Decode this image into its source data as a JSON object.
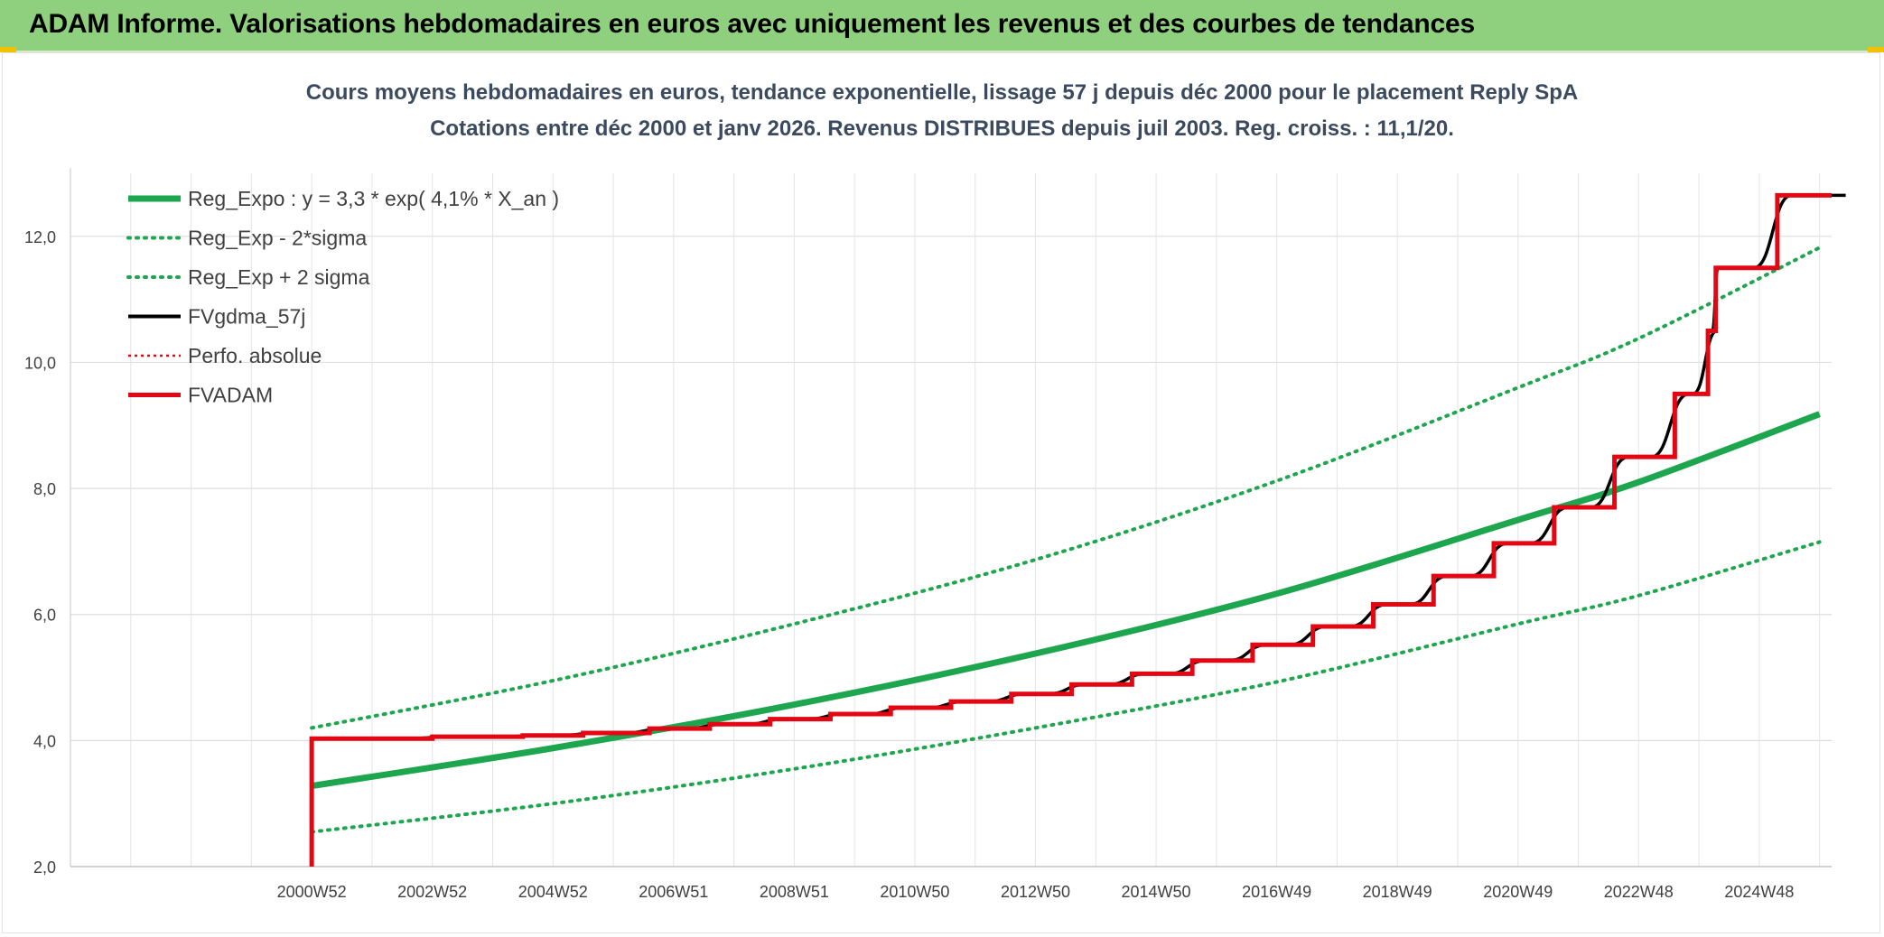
{
  "header": {
    "title": "ADAM Informe. Valorisations hebdomadaires en euros avec uniquement les revenus et des courbes de tendances"
  },
  "colors": {
    "banner": "#8fd07f",
    "reg": "#1ea64f",
    "fvgdma": "#000000",
    "fvadam": "#e30613",
    "perfo": "#e30613"
  },
  "chart_data": {
    "type": "line",
    "title": "Cours moyens hebdomadaires en euros, tendance exponentielle, lissage 57 j depuis déc 2000 pour le placement Reply SpA",
    "subtitle": "Cotations entre déc 2000 et janv 2026. Revenus DISTRIBUES depuis juil 2003. Reg. croiss. : 11,1/20.",
    "x_tick_labels": [
      "2000W52",
      "2002W52",
      "2004W52",
      "2006W51",
      "2008W51",
      "2010W50",
      "2012W50",
      "2014W50",
      "2016W49",
      "2018W49",
      "2020W49",
      "2022W48",
      "2024W48"
    ],
    "x_tick_years": [
      2001,
      2003,
      2005,
      2007,
      2009,
      2011,
      2013,
      2015,
      2017,
      2019,
      2021,
      2023,
      2025
    ],
    "x_range": [
      1997,
      2026.2
    ],
    "y_range": [
      2,
      13
    ],
    "y_ticks": [
      2,
      4,
      6,
      8,
      10,
      12
    ],
    "y_tick_labels": [
      "2,0",
      "4,0",
      "6,0",
      "8,0",
      "10,0",
      "12,0"
    ],
    "grid": true,
    "legend_position": "top-left",
    "legend": [
      {
        "key": "reg",
        "label": "Reg_Expo : y = 3,3 * exp( 4,1% *  X_an )",
        "style": "solid-thick"
      },
      {
        "key": "reg_minus",
        "label": "Reg_Exp - 2*sigma",
        "style": "dotted-green"
      },
      {
        "key": "reg_plus",
        "label": "Reg_Exp + 2 sigma",
        "style": "dotted-green"
      },
      {
        "key": "fvgdma",
        "label": "FVgdma_57j",
        "style": "solid-black"
      },
      {
        "key": "perfo",
        "label": "Perfo. absolue",
        "style": "dotted-red"
      },
      {
        "key": "fvadam",
        "label": "FVADAM",
        "style": "solid-red"
      }
    ],
    "series": [
      {
        "key": "reg",
        "x": [
          2001,
          2005,
          2009,
          2013,
          2017,
          2021,
          2023,
          2026
        ],
        "y": [
          3.28,
          3.88,
          4.57,
          5.38,
          6.33,
          7.5,
          8.1,
          9.18
        ]
      },
      {
        "key": "reg_minus",
        "x": [
          2001,
          2005,
          2009,
          2013,
          2017,
          2021,
          2023,
          2026
        ],
        "y": [
          2.55,
          3.0,
          3.55,
          4.2,
          4.93,
          5.85,
          6.3,
          7.15
        ]
      },
      {
        "key": "reg_plus",
        "x": [
          2001,
          2005,
          2009,
          2013,
          2017,
          2021,
          2023,
          2026
        ],
        "y": [
          4.2,
          4.95,
          5.85,
          6.87,
          8.12,
          9.6,
          10.38,
          11.82
        ]
      },
      {
        "key": "fvadam",
        "steps": [
          [
            2001.0,
            4.03
          ],
          [
            2003.0,
            4.06
          ],
          [
            2004.5,
            4.08
          ],
          [
            2005.5,
            4.12
          ],
          [
            2006.6,
            4.19
          ],
          [
            2007.6,
            4.26
          ],
          [
            2008.6,
            4.34
          ],
          [
            2009.6,
            4.42
          ],
          [
            2010.6,
            4.52
          ],
          [
            2011.6,
            4.62
          ],
          [
            2012.6,
            4.74
          ],
          [
            2013.6,
            4.89
          ],
          [
            2014.6,
            5.06
          ],
          [
            2015.6,
            5.27
          ],
          [
            2016.6,
            5.52
          ],
          [
            2017.6,
            5.81
          ],
          [
            2018.6,
            6.16
          ],
          [
            2019.6,
            6.61
          ],
          [
            2020.6,
            7.13
          ],
          [
            2021.6,
            7.7
          ],
          [
            2022.6,
            8.5
          ],
          [
            2023.6,
            9.5
          ],
          [
            2024.15,
            10.5
          ],
          [
            2024.28,
            11.5
          ],
          [
            2025.3,
            12.65
          ],
          [
            2026.2,
            12.65
          ]
        ],
        "start_low": 2.0
      }
    ]
  }
}
